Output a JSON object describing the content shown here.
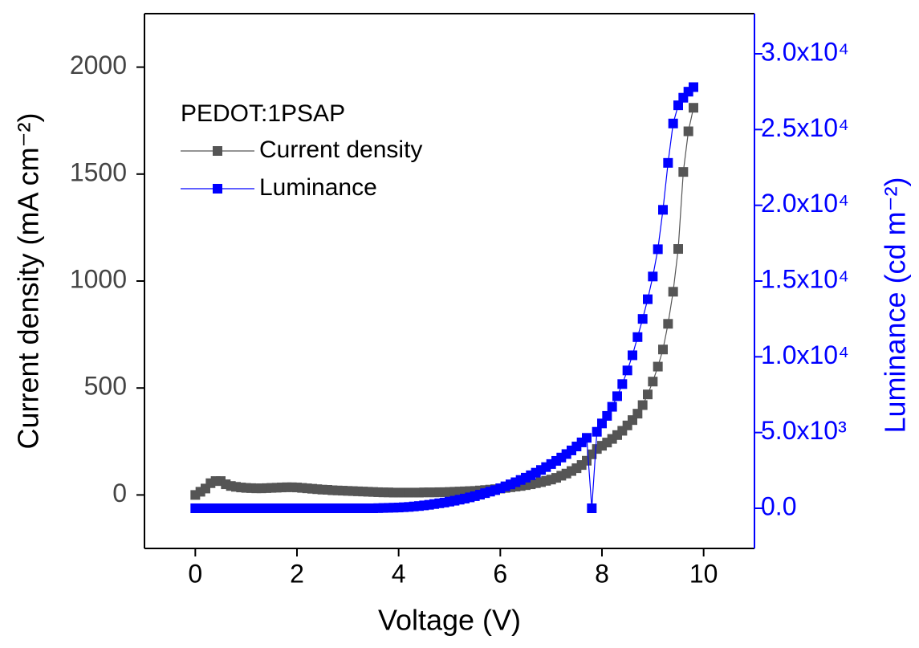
{
  "chart_data": {
    "type": "line",
    "xlabel": "Voltage (V)",
    "ylabel": "Current density (mA cm⁻²)",
    "y2label": "Luminance (cd m⁻²)",
    "legend_title": "PEDOT:1PSAP",
    "legend_position": "upper left",
    "markers": "square",
    "xlim": [
      -1,
      11
    ],
    "xticks": [
      0,
      2,
      4,
      6,
      8,
      10
    ],
    "ylim": [
      -250,
      2250
    ],
    "yticks": [
      0,
      500,
      1000,
      1500,
      2000
    ],
    "y2lim": [
      -2650,
      32650
    ],
    "y2ticks": [
      {
        "value": 0,
        "label": "0.0"
      },
      {
        "value": 5000,
        "label": "5.0x10³"
      },
      {
        "value": 10000,
        "label": "1.0x10⁴"
      },
      {
        "value": 15000,
        "label": "1.5x10⁴"
      },
      {
        "value": 20000,
        "label": "2.0x10⁴"
      },
      {
        "value": 25000,
        "label": "2.5x10⁴"
      },
      {
        "value": 30000,
        "label": "3.0x10⁴"
      }
    ],
    "y2color": "#0000ff",
    "x": [
      0,
      0.1,
      0.2,
      0.3,
      0.4,
      0.5,
      0.6,
      0.7,
      0.8,
      0.9,
      1,
      1.1,
      1.2,
      1.3,
      1.4,
      1.5,
      1.6,
      1.7,
      1.8,
      1.9,
      2,
      2.1,
      2.2,
      2.3,
      2.4,
      2.5,
      2.6,
      2.7,
      2.8,
      2.9,
      3,
      3.1,
      3.2,
      3.3,
      3.4,
      3.5,
      3.6,
      3.7,
      3.8,
      3.9,
      4,
      4.1,
      4.2,
      4.3,
      4.4,
      4.5,
      4.6,
      4.7,
      4.8,
      4.9,
      5,
      5.1,
      5.2,
      5.3,
      5.4,
      5.5,
      5.6,
      5.7,
      5.8,
      5.9,
      6,
      6.1,
      6.2,
      6.3,
      6.4,
      6.5,
      6.6,
      6.7,
      6.8,
      6.9,
      7,
      7.1,
      7.2,
      7.3,
      7.4,
      7.5,
      7.6,
      7.7,
      7.8,
      7.9,
      8,
      8.1,
      8.2,
      8.3,
      8.4,
      8.5,
      8.6,
      8.7,
      8.8,
      8.9,
      9,
      9.1,
      9.2,
      9.3,
      9.4,
      9.5,
      9.6,
      9.7,
      9.8,
      9.9,
      10
    ],
    "series": [
      {
        "name": "Current density",
        "color": "#555555",
        "values": [
          0,
          15,
          30,
          55,
          65,
          65,
          50,
          42,
          38,
          35,
          33,
          32,
          31,
          31,
          32,
          33,
          34,
          35,
          36,
          36,
          35,
          33,
          31,
          29,
          27,
          25,
          24,
          22,
          21,
          20,
          19,
          18,
          17,
          16,
          15,
          14,
          13,
          12,
          12,
          11,
          11,
          11,
          11,
          11,
          11,
          12,
          12,
          12,
          13,
          13,
          14,
          15,
          16,
          17,
          18,
          19,
          21,
          23,
          25,
          27,
          30,
          33,
          36,
          39,
          42,
          46,
          50,
          55,
          60,
          66,
          72,
          80,
          90,
          100,
          112,
          125,
          140,
          160,
          190,
          215,
          230,
          245,
          262,
          280,
          300,
          325,
          350,
          380,
          420,
          470,
          530,
          600,
          680,
          800,
          950,
          1150,
          1510,
          1700,
          1810,
          null,
          null
        ]
      },
      {
        "name": "Luminance",
        "color": "#0000ff",
        "axis": "y2",
        "values": [
          0,
          0,
          0,
          0,
          0,
          0,
          0,
          0,
          0,
          0,
          0,
          0,
          0,
          0,
          0,
          0,
          0,
          0,
          0,
          0,
          0,
          0,
          0,
          0,
          0,
          0,
          0,
          0,
          0,
          0,
          0,
          0,
          0,
          0,
          0,
          0,
          10,
          20,
          30,
          40,
          50,
          70,
          90,
          120,
          150,
          190,
          230,
          280,
          330,
          380,
          440,
          500,
          570,
          640,
          720,
          800,
          900,
          1000,
          1100,
          1200,
          1320,
          1450,
          1580,
          1720,
          1870,
          2020,
          2180,
          2350,
          2530,
          2720,
          2920,
          3130,
          3350,
          3580,
          3820,
          4080,
          4350,
          4650,
          0,
          5050,
          5600,
          6100,
          6700,
          7400,
          8200,
          9100,
          10100,
          11300,
          12500,
          13800,
          15300,
          17100,
          19700,
          22800,
          25400,
          26600,
          27100,
          27500,
          27800,
          null,
          null
        ]
      }
    ]
  }
}
